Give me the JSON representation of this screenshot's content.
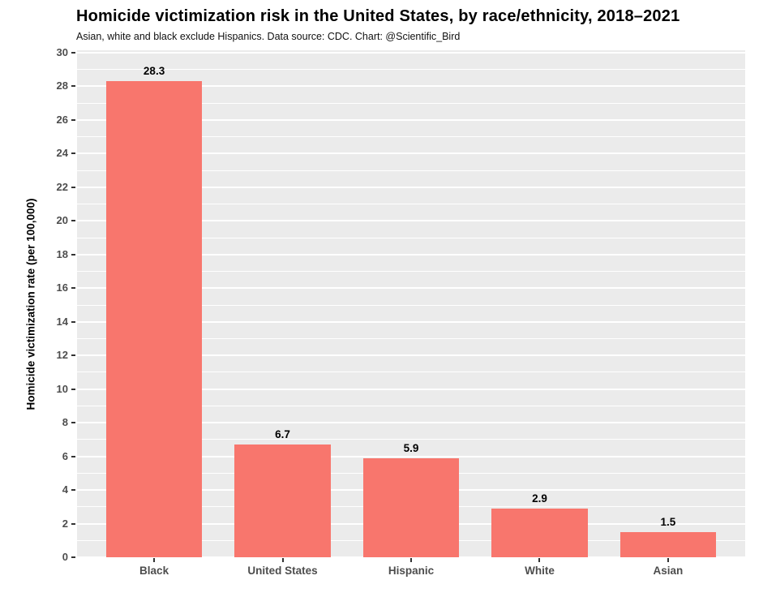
{
  "chart_data": {
    "type": "bar",
    "title": "Homicide victimization risk in the United States, by race/ethnicity, 2018–2021",
    "subtitle": "Asian, white and black exclude Hispanics. Data source: CDC. Chart: @Scientific_Bird",
    "categories": [
      "Black",
      "United States",
      "Hispanic",
      "White",
      "Asian"
    ],
    "values": [
      28.3,
      6.7,
      5.9,
      2.9,
      1.5
    ],
    "value_labels": [
      "28.3",
      "6.7",
      "5.9",
      "2.9",
      "1.5"
    ],
    "xlabel": "",
    "ylabel": "Homicide victimization rate (per 100,000)",
    "ylim": [
      0,
      30
    ],
    "ytick_step": 2,
    "yminor_step": 2,
    "yminor_start": 1,
    "grid": "major-and-minor",
    "legend_position": "none",
    "colors": {
      "bar": "#F8766D",
      "panel_background": "#EBEBEB",
      "grid_major": "#FFFFFF",
      "grid_minor": "#FFFFFF",
      "tick_mark": "#333333",
      "axis_text": "#4D4D4D",
      "title_text": "#000000",
      "value_label_text": "#000000",
      "page_background": "#FFFFFF"
    }
  }
}
